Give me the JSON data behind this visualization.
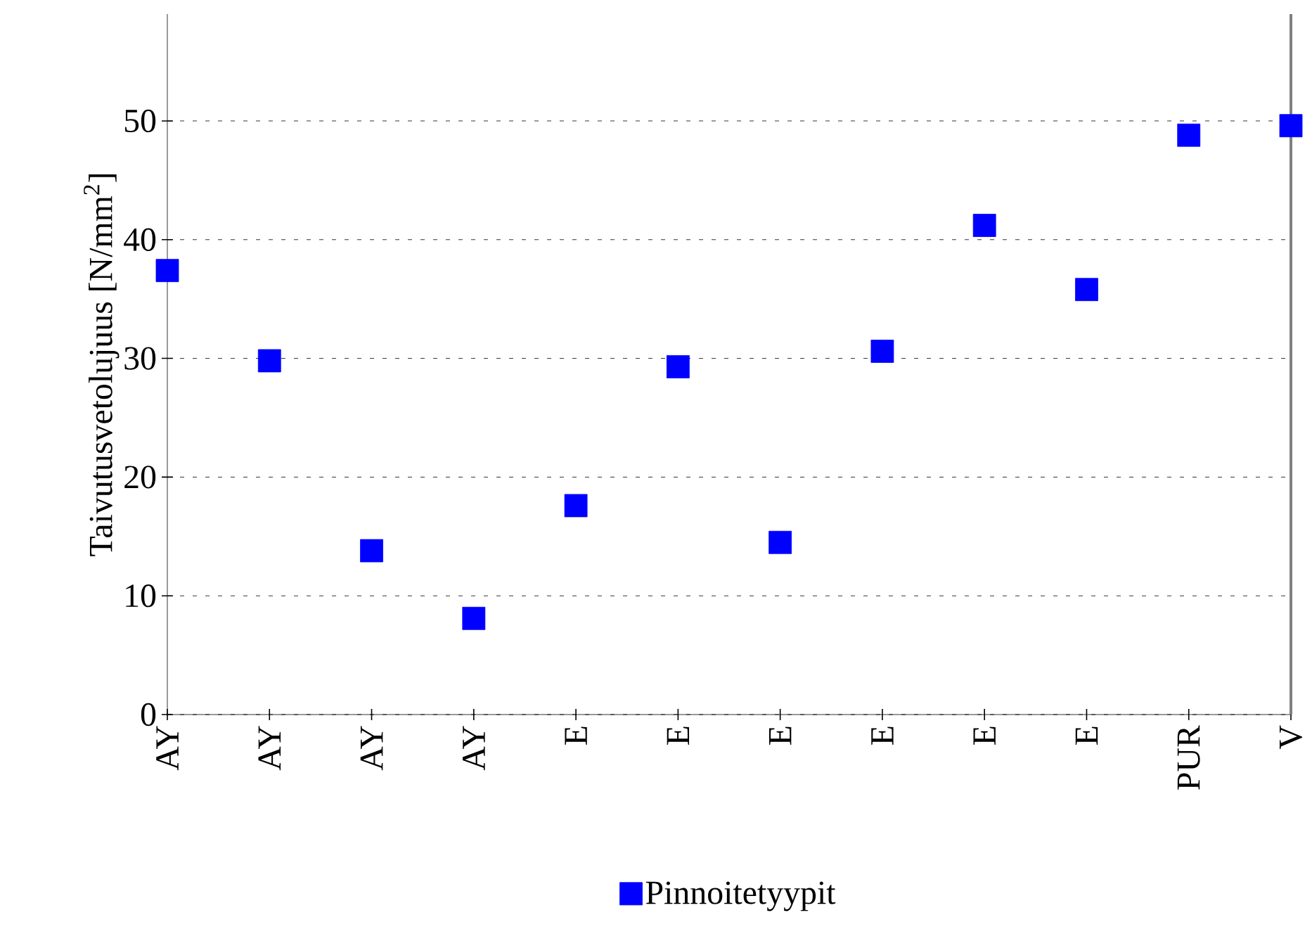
{
  "chart_data": {
    "type": "scatter",
    "ylabel": "Taivutusvetolujuus [N/mm$^{2}$]",
    "categories": [
      "AY",
      "AY",
      "AY",
      "AY",
      "E",
      "E",
      "E",
      "E",
      "E",
      "E",
      "PUR",
      "V"
    ],
    "series": [
      {
        "name": "Pinnoitetyypit",
        "color": "#0000ff",
        "values": [
          37.4,
          29.8,
          13.8,
          8.1,
          17.6,
          29.3,
          14.5,
          30.6,
          41.2,
          35.8,
          48.8,
          49.6
        ]
      }
    ],
    "ylim": [
      0,
      59
    ],
    "yticks": [
      0,
      10,
      20,
      30,
      40,
      50
    ],
    "grid": "y",
    "legend": "bottom",
    "marker": "square"
  }
}
